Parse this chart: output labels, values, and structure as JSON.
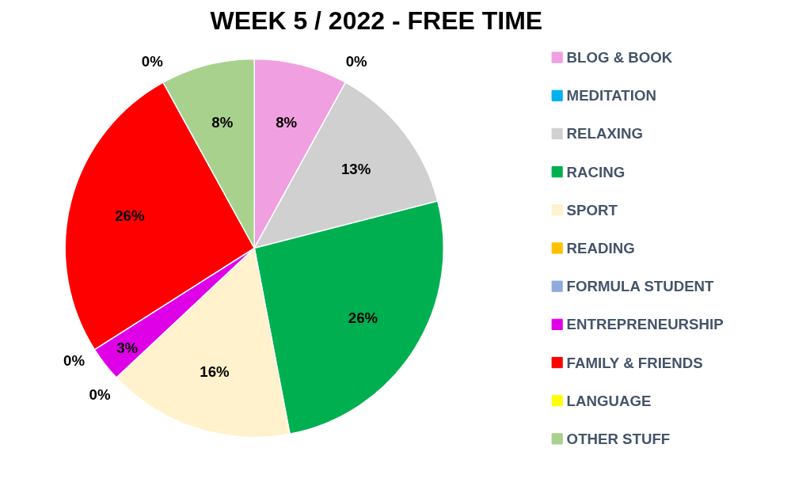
{
  "chart_data": {
    "type": "pie",
    "title": "WEEK 5 / 2022 - FREE TIME",
    "categories": [
      "BLOG & BOOK",
      "MEDITATION",
      "RELAXING",
      "RACING",
      "SPORT",
      "READING",
      "FORMULA STUDENT",
      "ENTREPRENEURSHIP",
      "FAMILY & FRIENDS",
      "LANGUAGE",
      "OTHER STUFF"
    ],
    "values": [
      8,
      0,
      13,
      26,
      16,
      0,
      0,
      3,
      26,
      0,
      8
    ],
    "colors": [
      "#f0a0e0",
      "#00b0f0",
      "#d0d0d0",
      "#00b050",
      "#fff2cc",
      "#ffc000",
      "#8faadc",
      "#e000e8",
      "#ff0000",
      "#ffff00",
      "#a9d18e"
    ],
    "value_labels": [
      "8%",
      "0%",
      "13%",
      "26%",
      "16%",
      "0%",
      "0%",
      "3%",
      "26%",
      "0%",
      "8%"
    ],
    "legend": "right"
  }
}
